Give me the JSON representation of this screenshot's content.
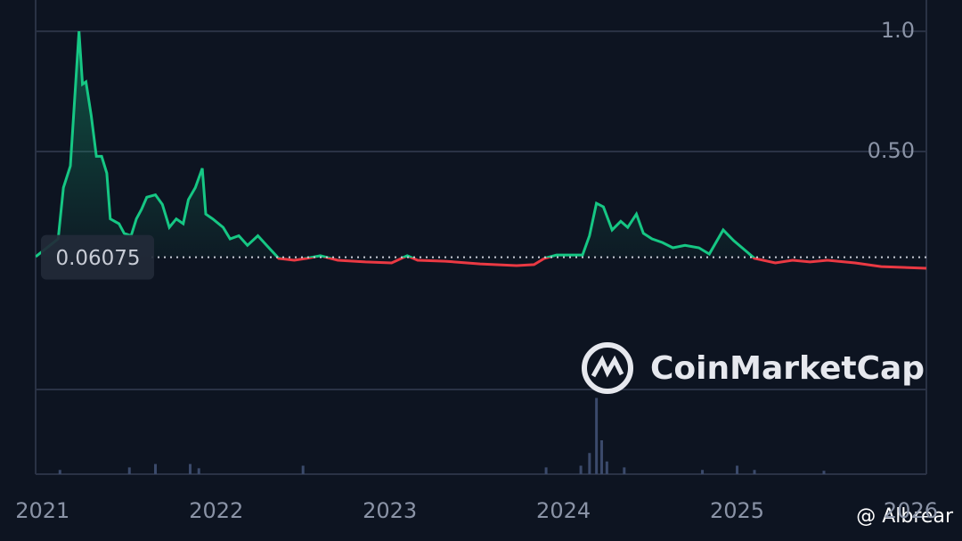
{
  "chart_data": {
    "type": "line",
    "watermark": "CoinMarketCap",
    "credit": "@ Albrear",
    "reference": {
      "value": 0.06075,
      "label": "0.06075"
    },
    "color_up": "#16c784",
    "color_down": "#ea3943",
    "x": [
      2020.96,
      2021.09,
      2021.12,
      2021.16,
      2021.21,
      2021.23,
      2021.25,
      2021.28,
      2021.31,
      2021.34,
      2021.37,
      2021.39,
      2021.44,
      2021.47,
      2021.51,
      2021.54,
      2021.57,
      2021.6,
      2021.65,
      2021.69,
      2021.73,
      2021.77,
      2021.81,
      2021.84,
      2021.88,
      2021.92,
      2021.94,
      2021.98,
      2022.04,
      2022.08,
      2022.13,
      2022.18,
      2022.24,
      2022.29,
      2022.36,
      2022.45,
      2022.52,
      2022.6,
      2022.7,
      2022.86,
      2023.01,
      2023.1,
      2023.16,
      2023.32,
      2023.52,
      2023.73,
      2023.83,
      2023.89,
      2023.96,
      2024.11,
      2024.15,
      2024.19,
      2024.23,
      2024.28,
      2024.33,
      2024.37,
      2024.42,
      2024.46,
      2024.51,
      2024.57,
      2024.63,
      2024.7,
      2024.78,
      2024.84,
      2024.92,
      2024.98,
      2025.06,
      2025.1,
      2025.22,
      2025.32,
      2025.42,
      2025.52,
      2025.68,
      2025.83,
      2026.09
    ],
    "values": [
      0.063,
      0.137,
      0.35,
      0.44,
      1.0,
      0.78,
      0.79,
      0.65,
      0.48,
      0.48,
      0.41,
      0.22,
      0.2,
      0.16,
      0.15,
      0.22,
      0.26,
      0.31,
      0.32,
      0.28,
      0.185,
      0.22,
      0.2,
      0.3,
      0.35,
      0.43,
      0.24,
      0.22,
      0.185,
      0.137,
      0.15,
      0.11,
      0.15,
      0.11,
      0.056,
      0.048,
      0.056,
      0.067,
      0.048,
      0.041,
      0.037,
      0.067,
      0.048,
      0.044,
      0.033,
      0.026,
      0.03,
      0.056,
      0.07,
      0.07,
      0.15,
      0.285,
      0.27,
      0.174,
      0.21,
      0.185,
      0.24,
      0.16,
      0.137,
      0.122,
      0.1,
      0.11,
      0.1,
      0.074,
      0.174,
      0.13,
      0.081,
      0.056,
      0.037,
      0.048,
      0.041,
      0.048,
      0.037,
      0.022,
      0.015
    ],
    "xlim": [
      2020.96,
      2026.09
    ],
    "xticks": [
      2021,
      2022,
      2023,
      2024,
      2025,
      2026
    ],
    "ylim": [
      0,
      1.13
    ],
    "yticks": [
      {
        "value": 1.0,
        "label": "1.0"
      },
      {
        "value": 0.5,
        "label": "0.50"
      }
    ],
    "grid": true,
    "volume": {
      "color": "#3b4a6b",
      "x": [
        2021.1,
        2021.5,
        2021.65,
        2021.85,
        2021.9,
        2022.5,
        2023.9,
        2024.1,
        2024.15,
        2024.19,
        2024.22,
        2024.25,
        2024.35,
        2024.8,
        2025.0,
        2025.1,
        2025.5
      ],
      "values": [
        5,
        8,
        12,
        12,
        7,
        10,
        8,
        10,
        25,
        90,
        40,
        15,
        8,
        5,
        10,
        5,
        4
      ],
      "ylim": [
        0,
        100
      ]
    }
  }
}
